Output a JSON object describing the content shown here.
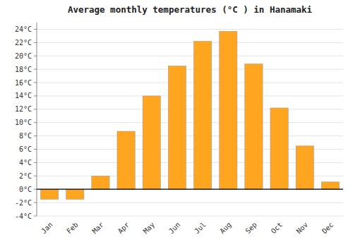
{
  "chart_data": {
    "type": "bar",
    "title": "Average monthly temperatures (°C ) in Hanamaki",
    "categories": [
      "Jan",
      "Feb",
      "Mar",
      "Apr",
      "May",
      "Jun",
      "Jul",
      "Aug",
      "Sep",
      "Oct",
      "Nov",
      "Dec"
    ],
    "values": [
      -1.5,
      -1.5,
      2.0,
      8.7,
      14.0,
      18.5,
      22.2,
      23.7,
      18.8,
      12.2,
      6.5,
      1.1
    ],
    "color": "#FFA520",
    "ylim": [
      -4,
      25
    ],
    "yticks": [
      {
        "value": -4,
        "label": "-4°C"
      },
      {
        "value": -2,
        "label": "-2°C"
      },
      {
        "value": 0,
        "label": "0°C"
      },
      {
        "value": 2,
        "label": "2°C"
      },
      {
        "value": 4,
        "label": "4°C"
      },
      {
        "value": 6,
        "label": "6°C"
      },
      {
        "value": 8,
        "label": "8°C"
      },
      {
        "value": 10,
        "label": "10°C"
      },
      {
        "value": 12,
        "label": "12°C"
      },
      {
        "value": 14,
        "label": "14°C"
      },
      {
        "value": 16,
        "label": "16°C"
      },
      {
        "value": 18,
        "label": "18°C"
      },
      {
        "value": 20,
        "label": "20°C"
      },
      {
        "value": 22,
        "label": "22°C"
      },
      {
        "value": 24,
        "label": "24°C"
      }
    ],
    "grid": true
  }
}
